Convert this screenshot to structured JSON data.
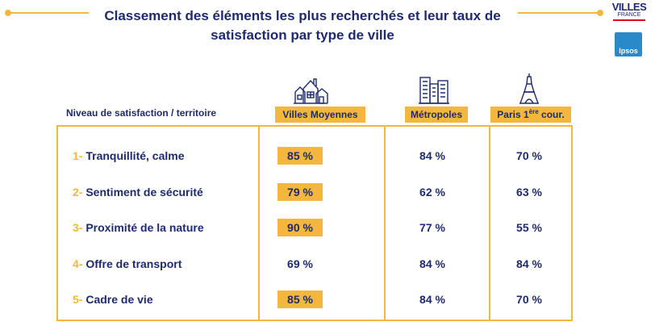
{
  "header": {
    "title_line1": "Classement des éléments les plus recherchés et leur taux de",
    "title_line2": "satisfaction par type de ville"
  },
  "logos": {
    "villes_main": "VILLES",
    "villes_sub": "FRANCE",
    "ipsos": "Ipsos"
  },
  "colors": {
    "accent": "#f4b73e",
    "text": "#1f2a6e"
  },
  "chart_data": {
    "type": "table",
    "row_header_label": "Niveau de satisfaction / territoire",
    "columns": [
      {
        "label": "Villes Moyennes",
        "icon": "town-houses-icon"
      },
      {
        "label": "Métropoles",
        "icon": "city-buildings-icon"
      },
      {
        "label_main": "Paris 1",
        "label_sup": "ère",
        "label_rest": " cour.",
        "icon": "eiffel-tower-icon"
      }
    ],
    "rows": [
      {
        "num": "1-",
        "label": "Tranquillité, calme",
        "values": [
          "85 %",
          "84 %",
          "70 %"
        ],
        "highlight": [
          true,
          false,
          false
        ]
      },
      {
        "num": "2-",
        "label": "Sentiment de sécurité",
        "values": [
          "79 %",
          "62 %",
          "63 %"
        ],
        "highlight": [
          true,
          false,
          false
        ]
      },
      {
        "num": "3-",
        "label": "Proximité de la nature",
        "values": [
          "90 %",
          "77 %",
          "55 %"
        ],
        "highlight": [
          true,
          false,
          false
        ]
      },
      {
        "num": "4-",
        "label": "Offre de transport",
        "values": [
          "69 %",
          "84 %",
          "84 %"
        ],
        "highlight": [
          false,
          false,
          false
        ]
      },
      {
        "num": "5-",
        "label": "Cadre de vie",
        "values": [
          "85 %",
          "84 %",
          "70 %"
        ],
        "highlight": [
          true,
          false,
          false
        ]
      }
    ]
  }
}
